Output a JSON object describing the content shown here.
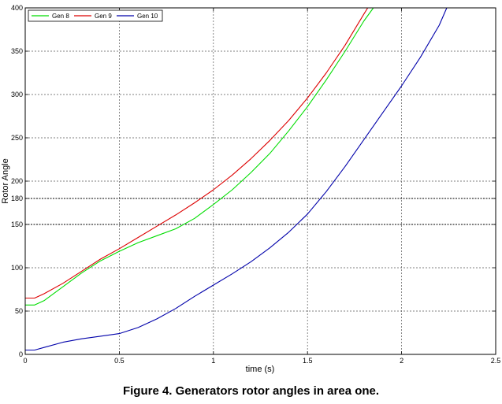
{
  "caption": "Figure 4. Generators rotor angles in area one.",
  "chart_data": {
    "type": "line",
    "title": "",
    "xlabel": "time (s)",
    "ylabel": "Rotor Angle",
    "xlim": [
      0,
      2.5
    ],
    "ylim": [
      0,
      400
    ],
    "x_ticks": [
      0,
      0.5,
      1,
      1.5,
      2,
      2.5
    ],
    "x_tick_labels": [
      "0",
      "0.5",
      "1",
      "1.5",
      "2",
      "2.5"
    ],
    "y_ticks": [
      0,
      50,
      100,
      150,
      180,
      200,
      250,
      300,
      350,
      400
    ],
    "y_tick_labels": [
      "0",
      "50",
      "100",
      "150",
      "180",
      "200",
      "250",
      "300",
      "350",
      "400"
    ],
    "reference_lines": [
      150,
      180
    ],
    "grid": true,
    "legend_position": "top-left",
    "series": [
      {
        "name": "Gen 8",
        "color": "#00dd00",
        "points": [
          [
            0,
            57
          ],
          [
            0.05,
            57
          ],
          [
            0.1,
            62
          ],
          [
            0.2,
            78
          ],
          [
            0.3,
            94
          ],
          [
            0.4,
            108
          ],
          [
            0.5,
            119
          ],
          [
            0.6,
            129
          ],
          [
            0.7,
            137
          ],
          [
            0.8,
            145
          ],
          [
            0.9,
            157
          ],
          [
            1.0,
            173
          ],
          [
            1.1,
            190
          ],
          [
            1.2,
            210
          ],
          [
            1.3,
            232
          ],
          [
            1.4,
            258
          ],
          [
            1.5,
            286
          ],
          [
            1.6,
            317
          ],
          [
            1.7,
            350
          ],
          [
            1.8,
            385
          ],
          [
            1.85,
            400
          ]
        ]
      },
      {
        "name": "Gen 9",
        "color": "#dd0000",
        "points": [
          [
            0,
            65
          ],
          [
            0.05,
            65
          ],
          [
            0.1,
            70
          ],
          [
            0.2,
            82
          ],
          [
            0.3,
            96
          ],
          [
            0.4,
            110
          ],
          [
            0.5,
            122
          ],
          [
            0.6,
            135
          ],
          [
            0.7,
            148
          ],
          [
            0.8,
            161
          ],
          [
            0.9,
            175
          ],
          [
            1.0,
            190
          ],
          [
            1.1,
            207
          ],
          [
            1.2,
            226
          ],
          [
            1.3,
            247
          ],
          [
            1.4,
            270
          ],
          [
            1.5,
            296
          ],
          [
            1.6,
            325
          ],
          [
            1.7,
            357
          ],
          [
            1.8,
            393
          ],
          [
            1.82,
            400
          ]
        ]
      },
      {
        "name": "Gen 10",
        "color": "#0000aa",
        "points": [
          [
            0,
            5
          ],
          [
            0.05,
            5
          ],
          [
            0.1,
            8
          ],
          [
            0.2,
            14
          ],
          [
            0.3,
            18
          ],
          [
            0.4,
            21
          ],
          [
            0.5,
            24
          ],
          [
            0.6,
            31
          ],
          [
            0.7,
            41
          ],
          [
            0.8,
            53
          ],
          [
            0.9,
            67
          ],
          [
            1.0,
            80
          ],
          [
            1.1,
            93
          ],
          [
            1.2,
            107
          ],
          [
            1.3,
            123
          ],
          [
            1.4,
            141
          ],
          [
            1.5,
            162
          ],
          [
            1.6,
            188
          ],
          [
            1.7,
            217
          ],
          [
            1.8,
            248
          ],
          [
            1.9,
            279
          ],
          [
            2.0,
            310
          ],
          [
            2.1,
            343
          ],
          [
            2.2,
            380
          ],
          [
            2.24,
            400
          ]
        ]
      }
    ]
  }
}
